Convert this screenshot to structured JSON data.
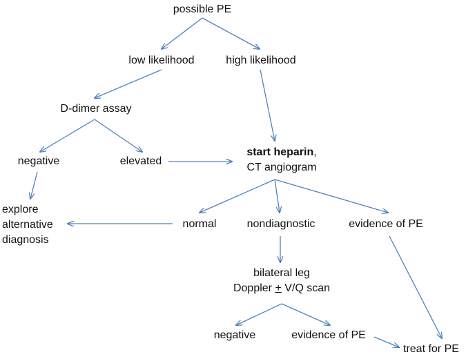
{
  "diagram": {
    "nodes": {
      "possible_pe": "possible PE",
      "low_likelihood": "low likelihood",
      "high_likelihood": "high likelihood",
      "d_dimer": "D-dimer assay",
      "negative_1": "negative",
      "elevated": "elevated",
      "start_heparin_bold": "start heparin",
      "start_heparin_comma": ",",
      "ct_angiogram": "CT angiogram",
      "explore_1": "explore",
      "explore_2": "alternative",
      "explore_3": "diagnosis",
      "normal": "normal",
      "nondiagnostic": "nondiagnostic",
      "evidence_pe_1": "evidence of PE",
      "bilateral_leg": "bilateral leg",
      "doppler_a": "Doppler ",
      "doppler_pm": "+",
      "doppler_b": " V/Q scan",
      "negative_2": "negative",
      "evidence_pe_2": "evidence of PE",
      "treat_pe": "treat for PE"
    },
    "colors": {
      "arrow": "#4f81bd",
      "text": "#111111"
    }
  }
}
